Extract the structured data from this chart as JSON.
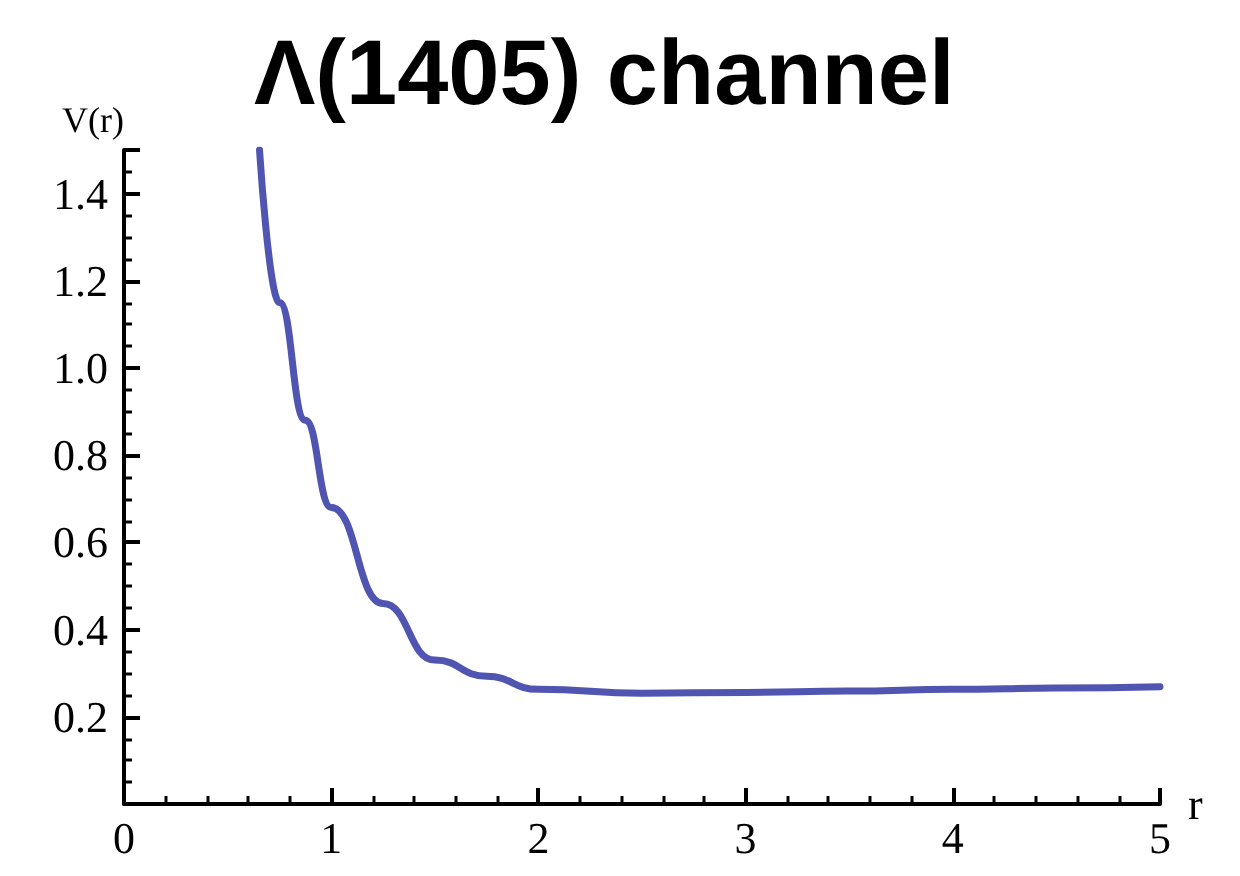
{
  "chart_data": {
    "type": "line",
    "title": "Λ(1405) channel",
    "xlabel": "r",
    "ylabel": "V(r)",
    "x": [
      0.654,
      0.75,
      0.875,
      1,
      1.25,
      1.5,
      1.75,
      2,
      2.5,
      3,
      3.5,
      4,
      4.5,
      5
    ],
    "series": [
      {
        "color": "#4f55b0",
        "values": [
          1.5,
          1.15,
          0.88,
          0.68,
          0.46,
          0.33,
          0.293,
          0.263,
          0.254,
          0.256,
          0.259,
          0.263,
          0.266,
          0.269
        ]
      }
    ],
    "xlim": [
      0,
      5
    ],
    "xticks": [
      0,
      1,
      2,
      3,
      4,
      5
    ],
    "ylim": [
      0,
      1.5
    ],
    "yticks": [
      0.2,
      0.4,
      0.6,
      0.8,
      {
        "value": 1,
        "label": "1.0"
      },
      1.2,
      1.4
    ],
    "grid": false,
    "marker": "none",
    "line_style": "solid"
  }
}
